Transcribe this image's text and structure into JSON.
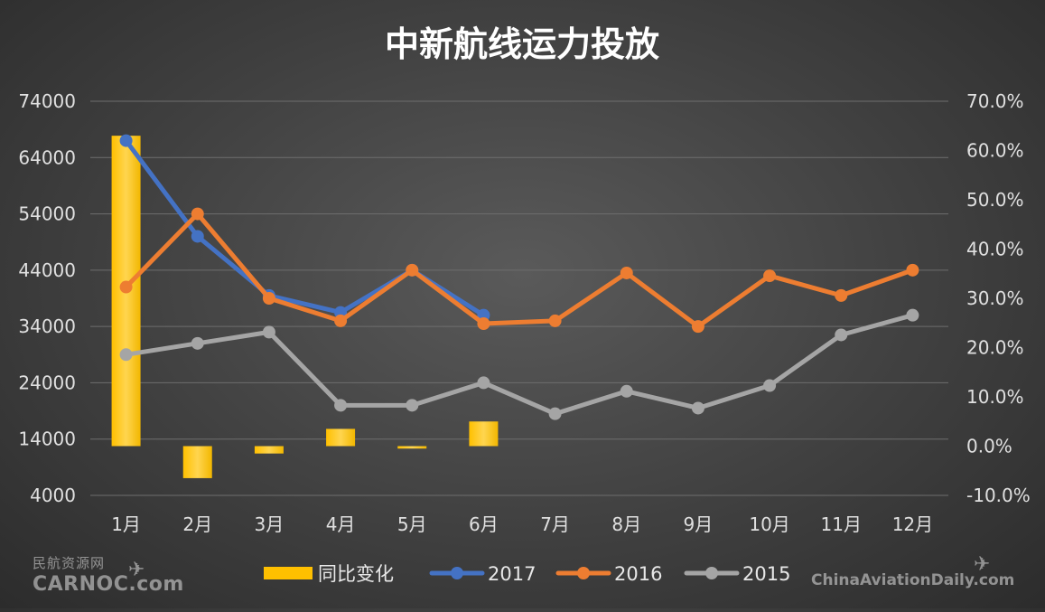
{
  "chart_data": {
    "type": "bar+line",
    "title": "中新航线运力投放",
    "categories": [
      "1月",
      "2月",
      "3月",
      "4月",
      "5月",
      "6月",
      "7月",
      "8月",
      "9月",
      "10月",
      "11月",
      "12月"
    ],
    "y_left": {
      "ticks": [
        "74000",
        "64000",
        "54000",
        "44000",
        "34000",
        "24000",
        "14000",
        "4000"
      ],
      "range": [
        4000,
        74000
      ]
    },
    "y_right": {
      "ticks": [
        "70.0%",
        "60.0%",
        "50.0%",
        "40.0%",
        "30.0%",
        "20.0%",
        "10.0%",
        "0.0%",
        "-10.0%"
      ],
      "range": [
        -10,
        70
      ]
    },
    "bar_series": {
      "name": "同比变化",
      "axis": "right",
      "unit": "%",
      "color": "#FFC000",
      "values": [
        63.0,
        -6.5,
        -1.5,
        3.5,
        -0.5,
        5.0
      ]
    },
    "line_series": [
      {
        "name": "2017",
        "color": "#4472C4",
        "values": [
          67000,
          50000,
          39500,
          36500,
          44000,
          36000
        ]
      },
      {
        "name": "2016",
        "color": "#ED7D31",
        "values": [
          41000,
          54000,
          39000,
          35000,
          44000,
          34500,
          35000,
          43500,
          34000,
          43000,
          39500,
          44000
        ]
      },
      {
        "name": "2015",
        "color": "#A5A5A5",
        "values": [
          29000,
          31000,
          33000,
          20000,
          20000,
          24000,
          18500,
          22500,
          19500,
          23500,
          32500,
          36000
        ]
      }
    ],
    "grid": true,
    "legend": "bottom"
  },
  "watermarks": {
    "left_cn": "民航资源网",
    "left_en": "CARNOC.com",
    "right": "ChinaAviationDaily.com"
  }
}
